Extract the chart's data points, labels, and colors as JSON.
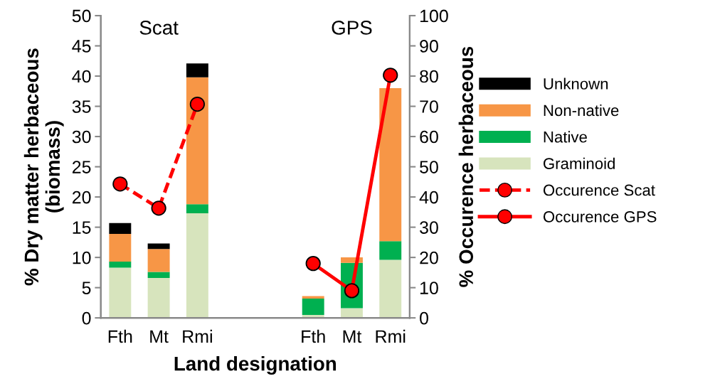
{
  "chart_data": {
    "type": "bar",
    "stacked": true,
    "xlabel": "Land designation",
    "ylabel": "% Dry matter herbaceous\n(biomass)",
    "y2label": "% Occurence herbaceous",
    "categories": [
      "Fth",
      "Mt",
      "Rmi",
      null,
      null,
      "Fth",
      "Mt",
      "Rmi"
    ],
    "series": [
      {
        "name": "Graminoid",
        "color": "#d7e4bd",
        "values": [
          8.3,
          6.6,
          17.3,
          null,
          null,
          0.5,
          1.6,
          9.6
        ]
      },
      {
        "name": "Native",
        "color": "#00b050",
        "values": [
          1.0,
          1.0,
          1.5,
          null,
          null,
          2.7,
          7.5,
          3.1
        ]
      },
      {
        "name": "Non-native",
        "color": "#f79646",
        "values": [
          4.6,
          3.8,
          21.0,
          null,
          null,
          0.4,
          0.9,
          25.3
        ]
      },
      {
        "name": "Unknown",
        "color": "#000000",
        "values": [
          1.8,
          0.9,
          2.3,
          null,
          null,
          0,
          0,
          0
        ]
      },
      {
        "name": "Occurence Scat",
        "type": "line",
        "axis": "y2",
        "color": "#ff0000",
        "line_style": "dashed",
        "values": [
          44.3,
          36.3,
          70.7,
          null,
          null,
          null,
          null,
          null
        ]
      },
      {
        "name": "Occurence GPS",
        "type": "line",
        "axis": "y2",
        "color": "#ff0000",
        "line_style": "solid",
        "values": [
          null,
          null,
          null,
          null,
          null,
          18.0,
          9.0,
          80.3
        ]
      }
    ],
    "marker": "circle",
    "ylim": [
      0,
      50
    ],
    "yticks": [
      0,
      5,
      10,
      15,
      20,
      25,
      30,
      35,
      40,
      45,
      50
    ],
    "y2lim": [
      0,
      100
    ],
    "y2ticks": [
      0,
      10,
      20,
      30,
      40,
      50,
      60,
      70,
      80,
      90,
      100
    ],
    "annotations": [
      "Scat",
      "GPS"
    ],
    "grid": false,
    "legend": "right"
  }
}
